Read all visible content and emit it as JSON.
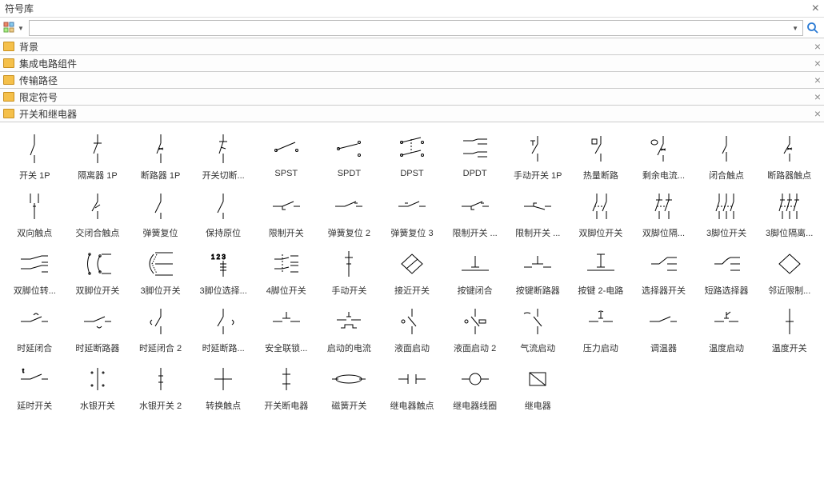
{
  "panel": {
    "title": "符号库"
  },
  "search": {
    "placeholder": ""
  },
  "categories": [
    {
      "label": "背景"
    },
    {
      "label": "集成电路组件"
    },
    {
      "label": "传输路径"
    },
    {
      "label": "限定符号"
    },
    {
      "label": "开关和继电器"
    }
  ],
  "symbols": [
    {
      "label": "开关 1P",
      "svg": "v1"
    },
    {
      "label": "隔离器 1P",
      "svg": "v2"
    },
    {
      "label": "断路器 1P",
      "svg": "v3"
    },
    {
      "label": "开关切断...",
      "svg": "v4"
    },
    {
      "label": "SPST",
      "svg": "spst"
    },
    {
      "label": "SPDT",
      "svg": "spdt"
    },
    {
      "label": "DPST",
      "svg": "dpst"
    },
    {
      "label": "DPDT",
      "svg": "dpdt"
    },
    {
      "label": "手动开关 1P",
      "svg": "man1p"
    },
    {
      "label": "热量断路",
      "svg": "therm"
    },
    {
      "label": "剩余电流...",
      "svg": "rcd"
    },
    {
      "label": "闭合触点",
      "svg": "nc"
    },
    {
      "label": "断路器触点",
      "svg": "brk"
    },
    {
      "label": "双向触点",
      "svg": "bidir"
    },
    {
      "label": "交闭合触点",
      "svg": "xnc"
    },
    {
      "label": "弹簧复位",
      "svg": "spr1"
    },
    {
      "label": "保持原位",
      "svg": "hold"
    },
    {
      "label": "限制开关",
      "svg": "lim1"
    },
    {
      "label": "弹簧复位 2",
      "svg": "spr2"
    },
    {
      "label": "弹簧复位 3",
      "svg": "spr3"
    },
    {
      "label": "限制开关 ...",
      "svg": "lim2"
    },
    {
      "label": "限制开关 ...",
      "svg": "lim3"
    },
    {
      "label": "双脚位开关",
      "svg": "dp1"
    },
    {
      "label": "双脚位隔...",
      "svg": "dp2"
    },
    {
      "label": "3脚位开关",
      "svg": "tp1"
    },
    {
      "label": "3脚位隔离...",
      "svg": "tp2"
    },
    {
      "label": "双脚位转...",
      "svg": "dpx"
    },
    {
      "label": "双脚位开关",
      "svg": "dpx2"
    },
    {
      "label": "3脚位开关",
      "svg": "tp3"
    },
    {
      "label": "3脚位选择...",
      "svg": "tpsel"
    },
    {
      "label": "4脚位开关",
      "svg": "qp"
    },
    {
      "label": "手动开关",
      "svg": "man"
    },
    {
      "label": "接近开关",
      "svg": "prox"
    },
    {
      "label": "按键闭合",
      "svg": "pbnc"
    },
    {
      "label": "按键断路器",
      "svg": "pbno"
    },
    {
      "label": "按键 2-电路",
      "svg": "pb2"
    },
    {
      "label": "选择器开关",
      "svg": "sel"
    },
    {
      "label": "短路选择器",
      "svg": "shsel"
    },
    {
      "label": "邻近限制...",
      "svg": "nlim"
    },
    {
      "label": "时延闭合",
      "svg": "tdnc"
    },
    {
      "label": "时延断路器",
      "svg": "tdno"
    },
    {
      "label": "时延闭合 2",
      "svg": "tdnc2"
    },
    {
      "label": "时延断路...",
      "svg": "tdno2"
    },
    {
      "label": "安全联锁...",
      "svg": "safe"
    },
    {
      "label": "启动的电流",
      "svg": "cur"
    },
    {
      "label": "液面启动",
      "svg": "liq1"
    },
    {
      "label": "液面启动 2",
      "svg": "liq2"
    },
    {
      "label": "气流启动",
      "svg": "air"
    },
    {
      "label": "压力启动",
      "svg": "pres"
    },
    {
      "label": "调温器",
      "svg": "tstat"
    },
    {
      "label": "温度启动",
      "svg": "temp"
    },
    {
      "label": "温度开关",
      "svg": "tsw"
    },
    {
      "label": "延时开关",
      "svg": "delay"
    },
    {
      "label": "水银开关",
      "svg": "hg1"
    },
    {
      "label": "水银开关 2",
      "svg": "hg2"
    },
    {
      "label": "转换触点",
      "svg": "xfr"
    },
    {
      "label": "开关断电器",
      "svg": "swbrk"
    },
    {
      "label": "磁簧开关",
      "svg": "reed"
    },
    {
      "label": "继电器触点",
      "svg": "rcon"
    },
    {
      "label": "继电器线圈",
      "svg": "rcoil"
    },
    {
      "label": "继电器",
      "svg": "relay"
    }
  ],
  "svg_defs": {
    "v1": "<line x1='25' y1='2' x2='25' y2='15'/><line x1='25' y1='15' x2='20' y2='28'/><line x1='25' y1='28' x2='25' y2='38'/>",
    "v2": "<line x1='25' y1='2' x2='25' y2='13'/><line x1='20' y1='13' x2='30' y2='13'/><line x1='25' y1='13' x2='20' y2='26'/><line x1='25' y1='26' x2='25' y2='38'/>",
    "v3": "<line x1='25' y1='2' x2='25' y2='13'/><line x1='25' y1='13' x2='20' y2='26'/><line x1='22' y1='19' x2='28' y2='21'/><line x1='22' y1='21' x2='28' y2='19'/><line x1='25' y1='26' x2='25' y2='38'/>",
    "v4": "<line x1='25' y1='2' x2='25' y2='11'/><line x1='20' y1='11' x2='30' y2='11'/><line x1='25' y1='11' x2='20' y2='26'/><line x1='22' y1='18' x2='28' y2='20'/><line x1='25' y1='26' x2='25' y2='38'/>",
    "spst": "<circle cx='12' cy='22' r='1.5'/><circle cx='38' cy='22' r='1.5'/><line x1='12' y1='22' x2='36' y2='12'/>",
    "spdt": "<circle cx='12' cy='20' r='1.5'/><circle cx='38' cy='12' r='1.5'/><circle cx='38' cy='28' r='1.5'/><line x1='12' y1='20' x2='36' y2='14'/>",
    "dpst": "<circle cx='12' cy='12' r='1.5'/><circle cx='38' cy='12' r='1.5'/><line x1='12' y1='12' x2='36' y2='6'/><circle cx='12' cy='28' r='1.5'/><circle cx='38' cy='28' r='1.5'/><line x1='12' y1='28' x2='36' y2='22'/><line x1='24' y1='8' x2='24' y2='25' stroke-dasharray='2,2'/>",
    "dpdt": "<line x1='10' y1='10' x2='22' y2='10'/><line x1='28' y1='8' x2='40' y2='8'/><line x1='28' y1='14' x2='40' y2='14'/><line x1='10' y1='26' x2='22' y2='26'/><line x1='28' y1='24' x2='40' y2='24'/><line x1='28' y1='30' x2='40' y2='30'/><line x1='22' y1='10' x2='28' y2='8'/><line x1='22' y1='26' x2='28' y2='24'/>",
    "man1p": "<line x1='25' y1='4' x2='25' y2='14'/><line x1='25' y1='14' x2='18' y2='26'/><line x1='25' y1='26' x2='25' y2='36'/><line x1='16' y1='10' x2='22' y2='10'/><line x1='19' y1='10' x2='19' y2='16'/>",
    "therm": "<line x1='25' y1='4' x2='25' y2='14'/><line x1='25' y1='14' x2='18' y2='26'/><line x1='25' y1='26' x2='25' y2='36'/><rect x='14' y='8' width='6' height='6'/>",
    "rcd": "<line x1='25' y1='4' x2='25' y2='14'/><line x1='25' y1='14' x2='18' y2='28'/><line x1='25' y1='28' x2='25' y2='36'/><line x1='22' y1='20' x2='28' y2='22'/><line x1='22' y1='22' x2='28' y2='20'/><ellipse cx='14' cy='12' rx='4' ry='3'/>",
    "nc": "<line x1='25' y1='4' x2='25' y2='16'/><line x1='25' y1='24' x2='25' y2='36'/><line x1='25' y1='16' x2='20' y2='26'/>",
    "brk": "<line x1='25' y1='4' x2='25' y2='14'/><line x1='25' y1='14' x2='18' y2='26'/><line x1='25' y1='26' x2='25' y2='36'/><line x1='22' y1='19' x2='28' y2='21'/><line x1='22' y1='21' x2='28' y2='19'/>",
    "bidir": "<line x1='20' y1='4' x2='20' y2='16'/><line x1='30' y1='4' x2='30' y2='16'/><line x1='25' y1='16' x2='25' y2='36'/><line x1='23' y1='20' x2='27' y2='20'/>",
    "xnc": "<line x1='25' y1='4' x2='25' y2='14'/><line x1='25' y1='14' x2='18' y2='26'/><line x1='28' y1='18' x2='22' y2='22'/><line x1='25' y1='26' x2='25' y2='36'/>",
    "spr1": "<line x1='25' y1='4' x2='25' y2='14'/><line x1='25' y1='14' x2='18' y2='28'/><line x1='25' y1='28' x2='25' y2='36'/>",
    "hold": "<line x1='25' y1='4' x2='25' y2='14'/><line x1='25' y1='14' x2='18' y2='28'/><line x1='25' y1='28' x2='25' y2='36'/>",
    "lim1": "<line x1='8' y1='20' x2='20' y2='20'/><line x1='20' y1='20' x2='34' y2='14'/><line x1='34' y1='20' x2='42' y2='20'/><polyline points='20,20 20,24 24,24'/>",
    "spr2": "<line x1='8' y1='20' x2='20' y2='20'/><line x1='20' y1='20' x2='34' y2='14'/><line x1='34' y1='20' x2='42' y2='20'/><line x1='32' y1='16' x2='36' y2='16'/>",
    "spr3": "<line x1='8' y1='20' x2='20' y2='20'/><line x1='20' y1='20' x2='34' y2='14'/><line x1='34' y1='20' x2='42' y2='20'/><line x1='16' y1='16' x2='20' y2='16'/>",
    "lim2": "<line x1='8' y1='20' x2='20' y2='20'/><line x1='20' y1='20' x2='34' y2='14'/><line x1='34' y1='20' x2='42' y2='20'/><polyline points='20,20 20,24 24,24'/><line x1='32' y1='16' x2='36' y2='16'/>",
    "lim3": "<line x1='8' y1='20' x2='20' y2='20'/><line x1='20' y1='20' x2='34' y2='24'/><line x1='34' y1='20' x2='42' y2='20'/><polyline points='20,20 20,16 24,16'/>",
    "dp1": "<line x1='20' y1='4' x2='20' y2='14'/><line x1='20' y1='14' x2='15' y2='26'/><line x1='20' y1='26' x2='20' y2='36'/><line x1='32' y1='4' x2='32' y2='14'/><line x1='32' y1='14' x2='27' y2='26'/><line x1='32' y1='26' x2='32' y2='36'/><line x1='17' y1='20' x2='30' y2='20' stroke-dasharray='2,2'/>",
    "dp2": "<line x1='20' y1='4' x2='20' y2='12'/><line x1='16' y1='12' x2='24' y2='12'/><line x1='20' y1='12' x2='15' y2='26'/><line x1='20' y1='26' x2='20' y2='36'/><line x1='32' y1='4' x2='32' y2='12'/><line x1='28' y1='12' x2='36' y2='12'/><line x1='32' y1='12' x2='27' y2='26'/><line x1='32' y1='26' x2='32' y2='36'/><line x1='17' y1='20' x2='30' y2='20' stroke-dasharray='2,2'/>",
    "tp1": "<line x1='16' y1='4' x2='16' y2='14'/><line x1='16' y1='14' x2='12' y2='26'/><line x1='16' y1='26' x2='16' y2='36'/><line x1='25' y1='4' x2='25' y2='14'/><line x1='25' y1='14' x2='21' y2='26'/><line x1='25' y1='26' x2='25' y2='36'/><line x1='34' y1='4' x2='34' y2='14'/><line x1='34' y1='14' x2='30' y2='26'/><line x1='34' y1='26' x2='34' y2='36'/><line x1='14' y1='20' x2='32' y2='20' stroke-dasharray='2,2'/>",
    "tp2": "<line x1='16' y1='4' x2='16' y2='12'/><line x1='13' y1='12' x2='19' y2='12'/><line x1='16' y1='12' x2='12' y2='26'/><line x1='16' y1='26' x2='16' y2='36'/><line x1='25' y1='4' x2='25' y2='12'/><line x1='22' y1='12' x2='28' y2='12'/><line x1='25' y1='12' x2='21' y2='26'/><line x1='25' y1='26' x2='25' y2='36'/><line x1='34' y1='4' x2='34' y2='12'/><line x1='31' y1='12' x2='37' y2='12'/><line x1='34' y1='12' x2='30' y2='26'/><line x1='34' y1='26' x2='34' y2='36'/><line x1='14' y1='20' x2='32' y2='20' stroke-dasharray='2,2'/>",
    "dpx": "<line x1='8' y1='14' x2='20' y2='14'/><line x1='8' y1='26' x2='20' y2='26'/><line x1='20' y1='14' x2='34' y2='10'/><line x1='20' y1='26' x2='34' y2='22'/><line x1='34' y1='10' x2='42' y2='10'/><line x1='34' y1='18' x2='42' y2='18'/><line x1='34' y1='22' x2='42' y2='22'/><line x1='34' y1='30' x2='42' y2='30'/>",
    "dpx2": "<path d='M15,8 Q10,20 15,32'/><path d='M28,10 Q22,20 28,30'/><circle cx='15' cy='8' r='1.2' fill='#000'/><circle cx='15' cy='32' r='1.2' fill='#000'/><circle cx='28' cy='10' r='1.2' fill='#000'/><circle cx='28' cy='30' r='1.2' fill='#000'/><line x1='30' y1='8' x2='42' y2='8'/><line x1='30' y1='32' x2='42' y2='32'/>",
    "tp3": "<path d='M16,8 Q6,20 16,32'/><line x1='18' y1='6' x2='40' y2='6'/><line x1='18' y1='20' x2='40' y2='20'/><line x1='18' y1='34' x2='40' y2='34'/><path d='M20,8 L14,20 L20,32' stroke-dasharray='1.5,1.5'/>",
    "tpsel": "<text x='10' y='14' font-size='8' fill='#000' stroke='none'>1 2 3</text><line x1='25' y1='16' x2='25' y2='36'/><line x1='21' y1='20' x2='29' y2='20'/><line x1='21' y1='24' x2='29' y2='24'/><line x1='21' y1='28' x2='29' y2='28'/>",
    "qp": "<line x1='10' y1='14' x2='20' y2='14'/><line x1='10' y1='26' x2='20' y2='26'/><line x1='30' y1='10' x2='40' y2='10'/><line x1='30' y1='18' x2='40' y2='18'/><line x1='30' y1='22' x2='40' y2='22'/><line x1='30' y1='30' x2='40' y2='30'/><line x1='20' y1='14' x2='28' y2='12'/><line x1='20' y1='26' x2='28' y2='24'/><line x1='20' y1='8' x2='20' y2='32' stroke-dasharray='2,2'/>",
    "man": "<line x1='25' y1='4' x2='25' y2='36'/><line x1='20' y1='12' x2='30' y2='12'/><line x1='22' y1='20' x2='28' y2='20'/>",
    "prox": "<polygon points='25,8 38,20 25,32 12,20'/><line x1='18' y1='26' x2='32' y2='14'/>",
    "pbnc": "<line x1='8' y1='28' x2='42' y2='28'/><line x1='25' y1='10' x2='25' y2='24'/><line x1='20' y1='24' x2='30' y2='24'/>",
    "pbno": "<line x1='8' y1='24' x2='18' y2='24'/><line x1='32' y1='24' x2='42' y2='24'/><line x1='18' y1='20' x2='32' y2='20'/><line x1='25' y1='10' x2='25' y2='20'/>",
    "pb2": "<line x1='8' y1='28' x2='42' y2='28'/><line x1='25' y1='8' x2='25' y2='24'/><line x1='20' y1='24' x2='30' y2='24'/><line x1='20' y1='8' x2='30' y2='8'/>",
    "sel": "<line x1='10' y1='20' x2='20' y2='20'/><line x1='30' y1='12' x2='42' y2='12'/><line x1='30' y1='20' x2='42' y2='20'/><line x1='30' y1='28' x2='42' y2='28'/><line x1='20' y1='20' x2='30' y2='12'/>",
    "shsel": "<line x1='10' y1='20' x2='20' y2='20'/><line x1='30' y1='12' x2='42' y2='12'/><line x1='30' y1='20' x2='42' y2='20'/><line x1='30' y1='28' x2='42' y2='28'/><path d='M20,20 Q25,14 30,12'/>",
    "nlim": "<polygon points='25,8 38,20 25,32 12,20'/>",
    "tdnc": "<line x1='8' y1='20' x2='20' y2='20'/><line x1='20' y1='20' x2='34' y2='14'/><line x1='34' y1='20' x2='42' y2='20'/><path d='M24,12 Q27,8 30,12'/>",
    "tdno": "<line x1='8' y1='20' x2='20' y2='20'/><line x1='20' y1='20' x2='34' y2='14'/><line x1='34' y1='20' x2='42' y2='20'/><path d='M24,26 Q27,30 30,26'/>",
    "tdnc2": "<line x1='25' y1='4' x2='25' y2='14'/><line x1='25' y1='14' x2='18' y2='26'/><line x1='25' y1='26' x2='25' y2='36'/><path d='M14,18 Q10,21 14,24'/>",
    "tdno2": "<line x1='25' y1='4' x2='25' y2='14'/><line x1='25' y1='14' x2='18' y2='26'/><line x1='25' y1='26' x2='25' y2='36'/><path d='M36,18 Q40,21 36,24'/>",
    "safe": "<line x1='8' y1='20' x2='20' y2='20'/><line x1='30' y1='20' x2='42' y2='20'/><line x1='20' y1='16' x2='30' y2='16'/><line x1='25' y1='8' x2='25' y2='16'/>",
    "cur": "<line x1='10' y1='18' x2='22' y2='18'/><line x1='28' y1='18' x2='40' y2='18'/><line x1='22' y1='14' x2='28' y2='14'/><line x1='25' y1='14' x2='25' y2='8'/><polyline points='15,28 20,28 20,24 30,24 30,28 35,28'/>",
    "liq1": "<line x1='25' y1='4' x2='25' y2='14'/><line x1='25' y1='26' x2='25' y2='36'/><line x1='20' y1='14' x2='30' y2='26'/><circle cx='14' cy='20' r='2'/>",
    "liq2": "<line x1='25' y1='4' x2='25' y2='14'/><line x1='25' y1='26' x2='25' y2='36'/><line x1='20' y1='14' x2='30' y2='26'/><circle cx='14' cy='20' r='2'/><rect x='30' y='18' width='8' height='4'/>",
    "air": "<line x1='25' y1='4' x2='25' y2='14'/><line x1='25' y1='26' x2='25' y2='36'/><line x1='20' y1='14' x2='30' y2='26'/><path d='M8,10 Q12,8 16,10'/>",
    "pres": "<line x1='10' y1='20' x2='22' y2='20'/><line x1='28' y1='20' x2='40' y2='20'/><line x1='22' y1='16' x2='28' y2='16'/><line x1='25' y1='8' x2='25' y2='16'/><path d='M22,8 Q25,6 28,8'/>",
    "tstat": "<line x1='8' y1='20' x2='20' y2='20'/><line x1='20' y1='20' x2='34' y2='14'/><line x1='34' y1='20' x2='42' y2='20'/>",
    "temp": "<line x1='10' y1='20' x2='22' y2='20'/><line x1='28' y1='20' x2='40' y2='20'/><line x1='22' y1='16' x2='28' y2='16'/><line x1='25' y1='8' x2='25' y2='16'/><line x1='25' y1='12' x2='30' y2='8'/>",
    "tsw": "<line x1='25' y1='4' x2='25' y2='36'/><line x1='20' y1='20' x2='30' y2='20'/>",
    "delay": "<line x1='8' y1='20' x2='20' y2='20'/><line x1='20' y1='20' x2='34' y2='14'/><line x1='34' y1='20' x2='42' y2='20'/><text x='10' y='12' font-size='7' fill='#000' stroke='none'>t</text>",
    "hg1": "<line x1='25' y1='6' x2='25' y2='34'/><circle cx='18' cy='12' r='1' fill='#000'/><circle cx='32' cy='12' r='1' fill='#000'/><circle cx='18' cy='28' r='1' fill='#000'/><circle cx='32' cy='28' r='1' fill='#000'/>",
    "hg2": "<line x1='25' y1='6' x2='25' y2='34'/><line x1='22' y1='16' x2='28' y2='16'/><line x1='22' y1='24' x2='28' y2='24'/>",
    "xfr": "<line x1='25' y1='6' x2='25' y2='34'/><line x1='14' y1='20' x2='36' y2='20'/>",
    "swbrk": "<line x1='25' y1='6' x2='25' y2='34'/><line x1='20' y1='14' x2='30' y2='14'/><line x1='20' y1='26' x2='30' y2='26'/>",
    "reed": "<ellipse cx='25' cy='20' rx='16' ry='5'/><line x1='4' y1='20' x2='12' y2='20'/><line x1='38' y1='20' x2='46' y2='20'/>",
    "rcon": "<line x1='8' y1='20' x2='20' y2='20'/><line x1='30' y1='20' x2='42' y2='20'/><line x1='20' y1='14' x2='20' y2='26'/><line x1='30' y1='14' x2='30' y2='26'/>",
    "rcoil": "<line x1='8' y1='20' x2='18' y2='20'/><line x1='32' y1='20' x2='42' y2='20'/><circle cx='25' cy='20' r='7'/>",
    "relay": "<rect x='15' y='12' width='20' height='16'/><line x1='15' y1='12' x2='35' y2='28'/>"
  }
}
